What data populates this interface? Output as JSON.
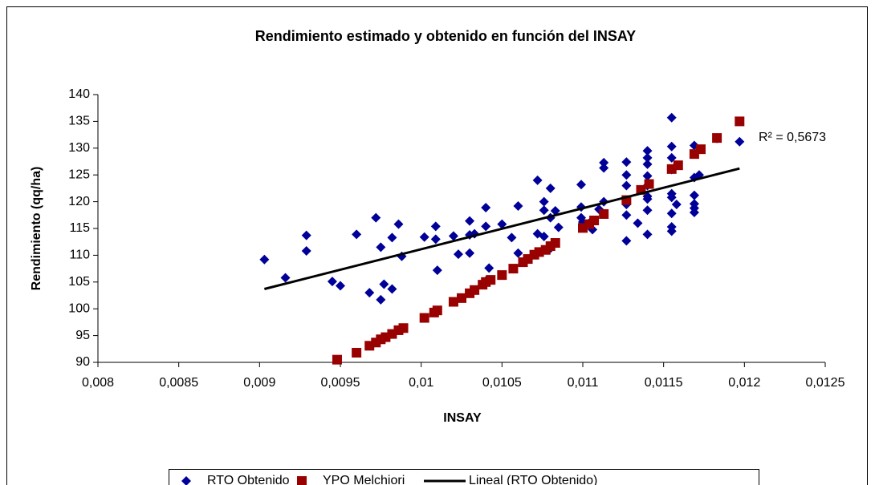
{
  "chart_data": {
    "type": "scatter",
    "title": "Rendimiento estimado y obtenido en función del INSAY",
    "x_label": "INSAY",
    "y_label": "Rendimiento (qq/ha)",
    "annotation": "R² = 0,5673",
    "xlim": [
      0.008,
      0.0125
    ],
    "xticks": [
      {
        "value": 0.008,
        "label": "0,008"
      },
      {
        "value": 0.0085,
        "label": "0,0085"
      },
      {
        "value": 0.009,
        "label": "0,009"
      },
      {
        "value": 0.0095,
        "label": "0,0095"
      },
      {
        "value": 0.01,
        "label": "0,01"
      },
      {
        "value": 0.0105,
        "label": "0,0105"
      },
      {
        "value": 0.011,
        "label": "0,011"
      },
      {
        "value": 0.0115,
        "label": "0,0115"
      },
      {
        "value": 0.012,
        "label": "0,012"
      },
      {
        "value": 0.0125,
        "label": "0,0125"
      }
    ],
    "ylim": [
      90,
      140
    ],
    "yticks": [
      90,
      95,
      100,
      105,
      110,
      115,
      120,
      125,
      130,
      135,
      140
    ],
    "grid": false,
    "legend": "bottom",
    "series": [
      {
        "name": "RTO Obtenido",
        "color": "#000099",
        "marker": "diamond",
        "x": [
          0.00903,
          0.00916,
          0.00929,
          0.00929,
          0.00945,
          0.0095,
          0.0096,
          0.00968,
          0.00972,
          0.00975,
          0.00975,
          0.00977,
          0.00982,
          0.00982,
          0.00986,
          0.00988,
          0.01002,
          0.01009,
          0.01009,
          0.0101,
          0.0102,
          0.01023,
          0.0103,
          0.0103,
          0.0103,
          0.01033,
          0.0104,
          0.0104,
          0.0104,
          0.01042,
          0.0105,
          0.01056,
          0.0106,
          0.0106,
          0.01072,
          0.01072,
          0.01076,
          0.01076,
          0.01076,
          0.0108,
          0.0108,
          0.0108,
          0.01083,
          0.01085,
          0.01099,
          0.01099,
          0.01099,
          0.011,
          0.01104,
          0.01106,
          0.0111,
          0.01113,
          0.01113,
          0.01113,
          0.01127,
          0.01127,
          0.01127,
          0.01127,
          0.01127,
          0.01127,
          0.01134,
          0.0114,
          0.0114,
          0.0114,
          0.0114,
          0.0114,
          0.0114,
          0.0114,
          0.0114,
          0.0114,
          0.01155,
          0.01155,
          0.01155,
          0.01155,
          0.01155,
          0.01155,
          0.01155,
          0.01155,
          0.01155,
          0.01158,
          0.01169,
          0.01169,
          0.01169,
          0.01169,
          0.01169,
          0.01169,
          0.01172,
          0.01183,
          0.01197
        ],
        "values": [
          109.2,
          105.8,
          113.7,
          110.8,
          105.1,
          104.3,
          113.9,
          103,
          117,
          111.5,
          101.7,
          104.6,
          113.3,
          103.7,
          115.8,
          109.8,
          113.4,
          115.4,
          113,
          107.2,
          113.6,
          110.2,
          116.4,
          113.8,
          110.4,
          114,
          118.9,
          115.4,
          105.2,
          107.6,
          115.8,
          113.3,
          119.2,
          110.4,
          124,
          114,
          120,
          118.4,
          113.5,
          122.5,
          117,
          111.3,
          118.3,
          115.2,
          123.2,
          119,
          117,
          116.2,
          116,
          114.8,
          118.6,
          127.3,
          126.3,
          120,
          127.4,
          125,
          123,
          119.5,
          117.5,
          112.7,
          116,
          129.5,
          128.2,
          127,
          124.8,
          123,
          121,
          120.5,
          118.4,
          113.9,
          135.7,
          130.3,
          128.2,
          126,
          121.5,
          120.8,
          117.8,
          115.3,
          114.5,
          119.5,
          130.5,
          124.5,
          121.2,
          119.6,
          118.8,
          118,
          125,
          131.8,
          131.2
        ]
      },
      {
        "name": "YPO Melchiori",
        "color": "#990000",
        "marker": "square",
        "x": [
          0.00948,
          0.0096,
          0.00968,
          0.00972,
          0.00975,
          0.00978,
          0.00982,
          0.00986,
          0.00989,
          0.01002,
          0.01008,
          0.0101,
          0.0102,
          0.01025,
          0.0103,
          0.01033,
          0.01038,
          0.0104,
          0.01043,
          0.0105,
          0.01057,
          0.01063,
          0.01066,
          0.0107,
          0.01073,
          0.01077,
          0.0108,
          0.01083,
          0.011,
          0.01104,
          0.01107,
          0.01113,
          0.01127,
          0.01136,
          0.01141,
          0.01155,
          0.01159,
          0.01169,
          0.01173,
          0.01183,
          0.01197
        ],
        "values": [
          90.5,
          91.8,
          93.1,
          93.7,
          94.3,
          94.7,
          95.3,
          96,
          96.4,
          98.3,
          99.3,
          99.7,
          101.3,
          102,
          102.9,
          103.5,
          104.5,
          105,
          105.4,
          106.3,
          107.5,
          108.7,
          109.3,
          110.1,
          110.6,
          111,
          111.7,
          112.3,
          115.1,
          115.8,
          116.5,
          117.7,
          120.3,
          122.2,
          123.3,
          126.1,
          126.8,
          128.9,
          129.8,
          131.9,
          135
        ]
      },
      {
        "name": "Lineal (RTO Obtenido)",
        "color": "#000000",
        "marker": "line",
        "x": [
          0.00903,
          0.01197
        ],
        "values": [
          103.7,
          126.2
        ]
      }
    ]
  }
}
